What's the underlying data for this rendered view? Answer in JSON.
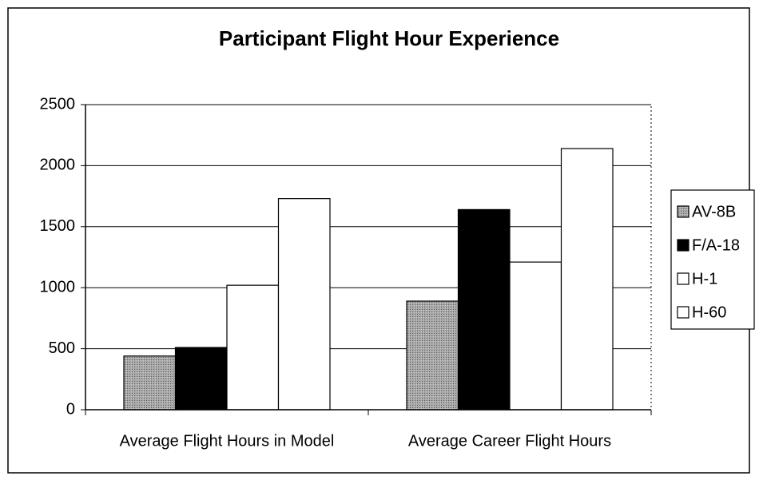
{
  "chart_data": {
    "type": "bar",
    "title": "Participant Flight Hour Experience",
    "categories": [
      "Average Flight Hours in Model",
      "Average Career Flight Hours"
    ],
    "series": [
      {
        "name": "AV-8B",
        "color": "#9a9a9a",
        "values": [
          440,
          890
        ]
      },
      {
        "name": "F/A-18",
        "color": "#000000",
        "values": [
          510,
          1640
        ]
      },
      {
        "name": "H-1",
        "color": "#ffffff",
        "values": [
          1020,
          1210
        ]
      },
      {
        "name": "H-60",
        "color": "#ffffff",
        "values": [
          1730,
          2140
        ]
      }
    ],
    "ylim": [
      0,
      2500
    ],
    "yticks": [
      0,
      500,
      1000,
      1500,
      2000,
      2500
    ],
    "grid": true,
    "legend": "right"
  }
}
